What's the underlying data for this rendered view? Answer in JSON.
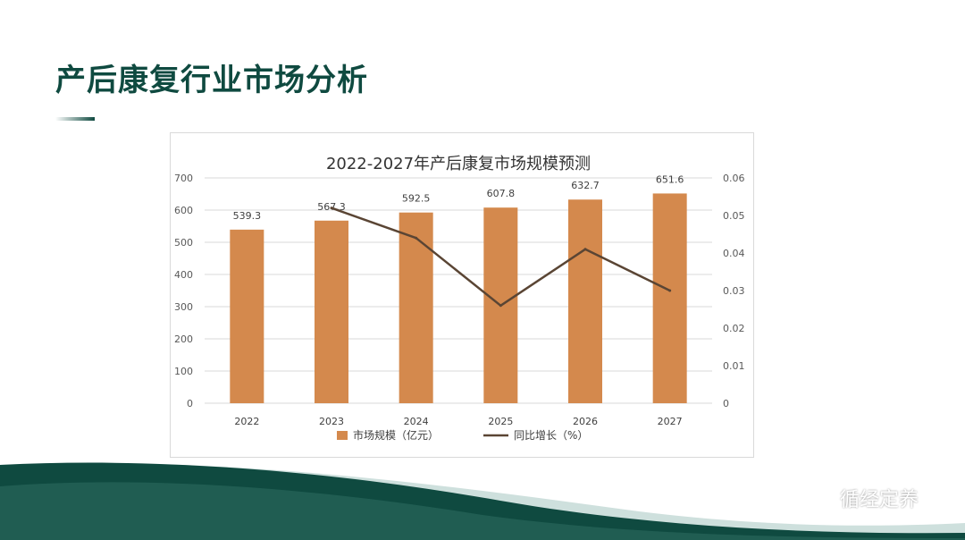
{
  "slide": {
    "title": "产后康复行业市场分析",
    "watermark": "循经定养",
    "watermark_icon": "wechat-icon"
  },
  "colors": {
    "title": "#0f4a40",
    "bar": "#d4894d",
    "line": "#5a4534",
    "wave_dark": "#0f4a40",
    "wave_light": "#b9d3cf"
  },
  "chart_data": {
    "type": "bar",
    "title": "2022-2027年产后康复市场规模预测",
    "categories": [
      "2022",
      "2023",
      "2024",
      "2025",
      "2026",
      "2027"
    ],
    "series": [
      {
        "name": "市场规模（亿元）",
        "type": "bar",
        "axis": "left",
        "values": [
          539.3,
          567.3,
          592.5,
          607.8,
          632.7,
          651.6
        ]
      },
      {
        "name": "同比增长（%）",
        "type": "line",
        "axis": "right",
        "values": [
          null,
          0.052,
          0.044,
          0.026,
          0.041,
          0.03
        ]
      }
    ],
    "data_labels": [
      "539.3",
      "567.3",
      "592.5",
      "607.8",
      "632.7",
      "651.6"
    ],
    "ylim_left": [
      0,
      700
    ],
    "yticks_left": [
      "0",
      "100",
      "200",
      "300",
      "400",
      "500",
      "600",
      "700"
    ],
    "ylim_right": [
      0,
      0.06
    ],
    "yticks_right": [
      "0",
      "0.01",
      "0.02",
      "0.03",
      "0.04",
      "0.05",
      "0.06"
    ],
    "grid": true,
    "legend_position": "bottom"
  }
}
